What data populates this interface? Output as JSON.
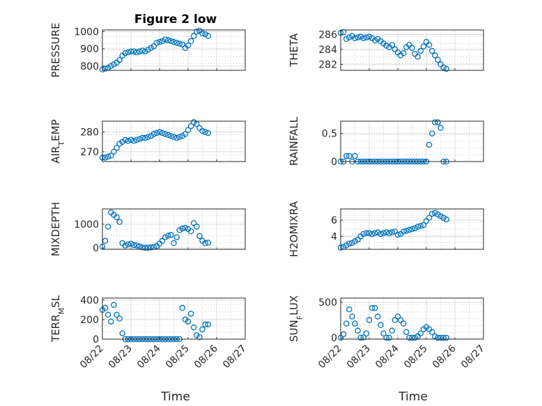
{
  "title": "Figure 2 low",
  "x_ticks": [
    "08/22",
    "08/23",
    "08/24",
    "08/25",
    "08/26",
    "08/27"
  ],
  "x_label": "Time",
  "colors": {
    "marker": "#0072BD",
    "axis": "#262626",
    "grid": "#dcdcdc"
  },
  "chart_data": [
    {
      "id": "pressure",
      "type": "scatter",
      "ylabel": "PRESSURE",
      "ylabel_sub": null,
      "ylim": [
        775,
        1010
      ],
      "yticks": [
        800,
        900,
        1000
      ],
      "xlim": [
        0,
        5
      ],
      "x": [
        0,
        0.1,
        0.2,
        0.3,
        0.4,
        0.5,
        0.6,
        0.7,
        0.8,
        0.9,
        1,
        1.1,
        1.2,
        1.3,
        1.4,
        1.5,
        1.6,
        1.7,
        1.8,
        1.9,
        2,
        2.1,
        2.2,
        2.3,
        2.4,
        2.5,
        2.6,
        2.7,
        2.8,
        2.9,
        3,
        3.1,
        3.2,
        3.3,
        3.4,
        3.5,
        3.6,
        3.7
      ],
      "y": [
        780,
        785,
        790,
        800,
        810,
        820,
        835,
        860,
        875,
        880,
        885,
        885,
        880,
        885,
        890,
        885,
        895,
        905,
        915,
        935,
        940,
        945,
        955,
        950,
        945,
        940,
        935,
        930,
        925,
        905,
        920,
        945,
        975,
        1000,
        1005,
        990,
        985,
        975
      ]
    },
    {
      "id": "theta",
      "type": "scatter",
      "ylabel": "THETA",
      "ylabel_sub": null,
      "ylim": [
        281.2,
        286.6
      ],
      "yticks": [
        282,
        284,
        286
      ],
      "xlim": [
        0,
        5
      ],
      "x": [
        0,
        0.1,
        0.2,
        0.3,
        0.4,
        0.5,
        0.6,
        0.7,
        0.8,
        0.9,
        1,
        1.1,
        1.2,
        1.3,
        1.4,
        1.5,
        1.6,
        1.7,
        1.8,
        1.9,
        2,
        2.1,
        2.2,
        2.3,
        2.4,
        2.5,
        2.6,
        2.7,
        2.8,
        2.9,
        3,
        3.1,
        3.2,
        3.3,
        3.4,
        3.5,
        3.6,
        3.7
      ],
      "y": [
        286.2,
        286.3,
        285.4,
        285.6,
        285.8,
        285.5,
        285.6,
        285.7,
        285.5,
        285.6,
        285.7,
        285.5,
        285.2,
        285.4,
        285.1,
        284.8,
        284.5,
        284.3,
        284.6,
        284.0,
        283.6,
        283.2,
        283.5,
        284.3,
        284.6,
        284.2,
        283.4,
        283.0,
        283.8,
        284.4,
        285.0,
        284.6,
        283.8,
        283.2,
        282.6,
        282.0,
        281.6,
        281.4
      ]
    },
    {
      "id": "air_temp",
      "type": "scatter",
      "ylabel": "AIR",
      "ylabel_sub": "T",
      "ylabel_rest": "EMP",
      "ylim": [
        265,
        285.5
      ],
      "yticks": [
        270,
        280
      ],
      "xlim": [
        0,
        5
      ],
      "x": [
        0,
        0.1,
        0.2,
        0.3,
        0.4,
        0.5,
        0.6,
        0.7,
        0.8,
        0.9,
        1,
        1.1,
        1.2,
        1.3,
        1.4,
        1.5,
        1.6,
        1.7,
        1.8,
        1.9,
        2,
        2.1,
        2.2,
        2.3,
        2.4,
        2.5,
        2.6,
        2.7,
        2.8,
        2.9,
        3,
        3.1,
        3.2,
        3.3,
        3.4,
        3.5,
        3.6,
        3.7
      ],
      "y": [
        267,
        267,
        267.5,
        268,
        270,
        272,
        274,
        275,
        276,
        275.5,
        276,
        275.5,
        276,
        276.5,
        277,
        277,
        277.5,
        278,
        279,
        279.5,
        280,
        279.5,
        279,
        278.5,
        278,
        277.5,
        277,
        277.5,
        278,
        279,
        281,
        283,
        285,
        284,
        282,
        280.5,
        280,
        279.5
      ]
    },
    {
      "id": "rainfall",
      "type": "scatter",
      "ylabel": "RAINFALL",
      "ylabel_sub": null,
      "ylim": [
        0,
        0.72
      ],
      "yticks": [
        0,
        0.5
      ],
      "ytick_labels": [
        "0",
        "0.5"
      ],
      "xlim": [
        0,
        5
      ],
      "x": [
        0,
        0.1,
        0.2,
        0.3,
        0.4,
        0.5,
        0.6,
        0.7,
        0.8,
        0.9,
        1,
        1.1,
        1.2,
        1.3,
        1.4,
        1.5,
        1.6,
        1.7,
        1.8,
        1.9,
        2,
        2.1,
        2.2,
        2.3,
        2.4,
        2.5,
        2.6,
        2.7,
        2.8,
        2.9,
        3,
        3.1,
        3.2,
        3.3,
        3.4,
        3.5,
        3.6,
        3.7
      ],
      "y": [
        0,
        0,
        0.1,
        0.1,
        0,
        0.1,
        0,
        0,
        0,
        0,
        0,
        0,
        0,
        0,
        0,
        0,
        0,
        0,
        0,
        0,
        0,
        0,
        0,
        0,
        0,
        0,
        0,
        0,
        0,
        0,
        0,
        0.3,
        0.5,
        0.7,
        0.7,
        0.6,
        0,
        0
      ]
    },
    {
      "id": "mixdepth",
      "type": "scatter",
      "ylabel": "MIXDEPTH",
      "ylabel_sub": null,
      "ylim": [
        -60,
        1650
      ],
      "yticks": [
        0,
        1000
      ],
      "xlim": [
        0,
        5
      ],
      "x": [
        0,
        0.1,
        0.2,
        0.3,
        0.4,
        0.5,
        0.6,
        0.7,
        0.8,
        0.9,
        1,
        1.1,
        1.2,
        1.3,
        1.4,
        1.5,
        1.6,
        1.7,
        1.8,
        1.9,
        2,
        2.1,
        2.2,
        2.3,
        2.4,
        2.5,
        2.6,
        2.7,
        2.8,
        2.9,
        3,
        3.1,
        3.2,
        3.3,
        3.4,
        3.5,
        3.6,
        3.7
      ],
      "y": [
        50,
        300,
        900,
        1500,
        1400,
        1300,
        1100,
        200,
        100,
        150,
        180,
        120,
        100,
        60,
        20,
        5,
        10,
        20,
        40,
        80,
        180,
        300,
        450,
        520,
        550,
        200,
        450,
        750,
        820,
        850,
        800,
        700,
        1050,
        900,
        500,
        300,
        200,
        220
      ]
    },
    {
      "id": "h2omixra",
      "type": "scatter",
      "ylabel": "H2OMIXRA",
      "ylabel_sub": null,
      "ylim": [
        2.4,
        7.4
      ],
      "yticks": [
        4,
        6
      ],
      "xlim": [
        0,
        5
      ],
      "x": [
        0,
        0.1,
        0.2,
        0.3,
        0.4,
        0.5,
        0.6,
        0.7,
        0.8,
        0.9,
        1,
        1.1,
        1.2,
        1.3,
        1.4,
        1.5,
        1.6,
        1.7,
        1.8,
        1.9,
        2,
        2.1,
        2.2,
        2.3,
        2.4,
        2.5,
        2.6,
        2.7,
        2.8,
        2.9,
        3,
        3.1,
        3.2,
        3.3,
        3.4,
        3.5,
        3.6,
        3.7
      ],
      "y": [
        2.6,
        2.7,
        2.9,
        3.1,
        3.2,
        3.4,
        3.6,
        4.0,
        4.3,
        4.4,
        4.4,
        4.3,
        4.4,
        4.5,
        4.3,
        4.4,
        4.5,
        4.4,
        4.5,
        4.6,
        4.2,
        4.3,
        4.6,
        4.7,
        4.8,
        4.9,
        5.0,
        5.2,
        5.3,
        5.4,
        5.9,
        6.3,
        6.8,
        6.9,
        6.7,
        6.5,
        6.3,
        6.1
      ]
    },
    {
      "id": "terr_msl",
      "type": "scatter",
      "ylabel": "TERR",
      "ylabel_sub": "M",
      "ylabel_rest": "SL",
      "ylim": [
        0,
        420
      ],
      "yticks": [
        0,
        200,
        400
      ],
      "xlim": [
        0,
        5
      ],
      "x": [
        0,
        0.1,
        0.2,
        0.3,
        0.4,
        0.5,
        0.6,
        0.7,
        0.8,
        0.9,
        1,
        1.1,
        1.2,
        1.3,
        1.4,
        1.5,
        1.6,
        1.7,
        1.8,
        1.9,
        2,
        2.1,
        2.2,
        2.3,
        2.4,
        2.5,
        2.6,
        2.7,
        2.8,
        2.9,
        3,
        3.1,
        3.2,
        3.3,
        3.4,
        3.5,
        3.6,
        3.7
      ],
      "y": [
        300,
        320,
        250,
        180,
        350,
        250,
        210,
        60,
        0,
        0,
        0,
        0,
        0,
        0,
        0,
        0,
        0,
        0,
        0,
        0,
        0,
        0,
        0,
        0,
        0,
        0,
        0,
        0,
        320,
        200,
        180,
        260,
        120,
        40,
        20,
        100,
        150,
        150
      ]
    },
    {
      "id": "sun_flux",
      "type": "scatter",
      "ylabel": "SUN",
      "ylabel_sub": "F",
      "ylabel_rest": "LUX",
      "ylim": [
        -20,
        560
      ],
      "yticks": [
        0,
        500
      ],
      "xlim": [
        0,
        5
      ],
      "x": [
        0,
        0.1,
        0.2,
        0.3,
        0.4,
        0.5,
        0.6,
        0.7,
        0.8,
        0.9,
        1,
        1.1,
        1.2,
        1.3,
        1.4,
        1.5,
        1.6,
        1.7,
        1.8,
        1.9,
        2,
        2.1,
        2.2,
        2.3,
        2.4,
        2.5,
        2.6,
        2.7,
        2.8,
        2.9,
        3,
        3.1,
        3.2,
        3.3,
        3.4,
        3.5,
        3.6,
        3.7
      ],
      "y": [
        0,
        50,
        200,
        400,
        300,
        200,
        100,
        0,
        5,
        60,
        250,
        420,
        420,
        300,
        180,
        60,
        0,
        0,
        100,
        250,
        300,
        250,
        200,
        80,
        0,
        0,
        0,
        20,
        60,
        120,
        150,
        120,
        80,
        20,
        0,
        0,
        0,
        0
      ]
    }
  ]
}
